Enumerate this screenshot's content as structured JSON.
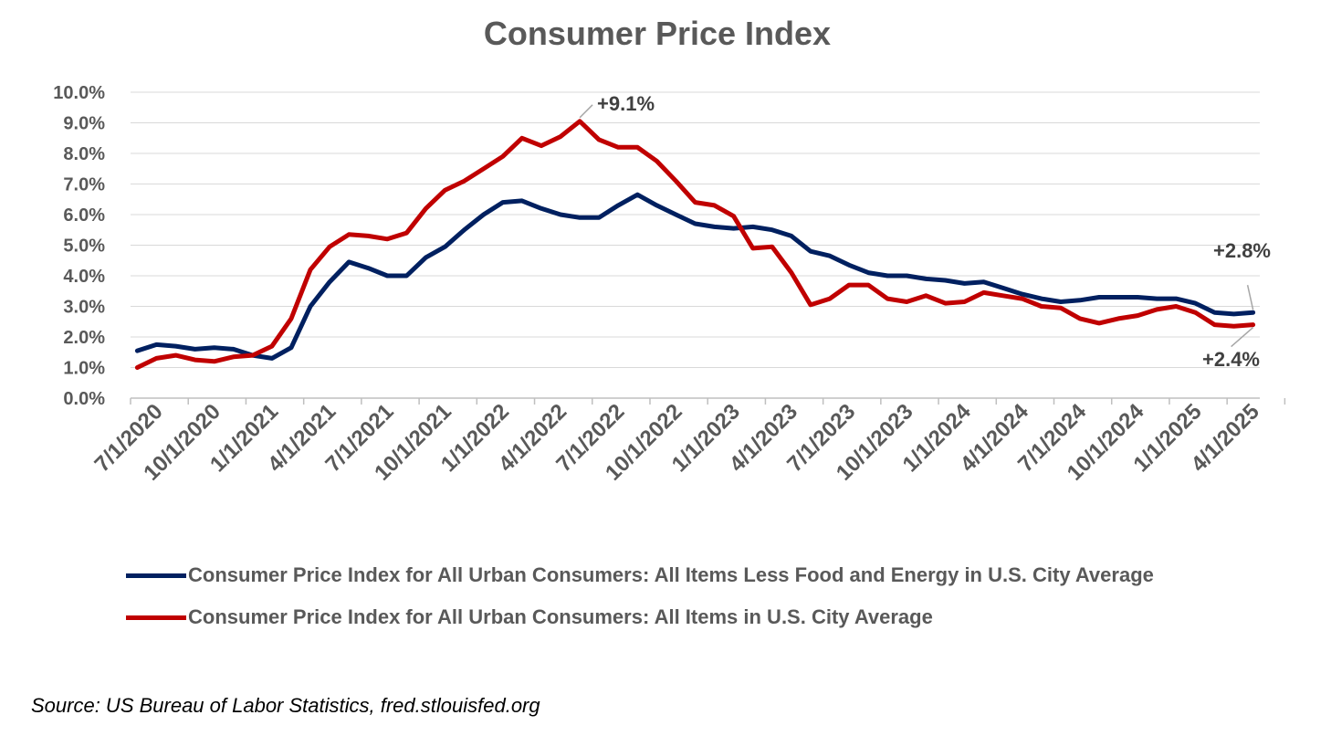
{
  "chart_data": {
    "type": "line",
    "title": "Consumer Price Index",
    "ylim": [
      0,
      10
    ],
    "y_ticks": [
      "0.0%",
      "1.0%",
      "2.0%",
      "3.0%",
      "4.0%",
      "5.0%",
      "6.0%",
      "7.0%",
      "8.0%",
      "9.0%",
      "10.0%"
    ],
    "x_tick_labels": [
      "7/1/2020",
      "10/1/2020",
      "1/1/2021",
      "4/1/2021",
      "7/1/2021",
      "10/1/2021",
      "1/1/2022",
      "4/1/2022",
      "7/1/2022",
      "10/1/2022",
      "1/1/2023",
      "4/1/2023",
      "7/1/2023",
      "10/1/2023",
      "1/1/2024",
      "4/1/2024",
      "7/1/2024",
      "10/1/2024",
      "1/1/2025",
      "4/1/2025"
    ],
    "start_month": "6/1/2020",
    "series": [
      {
        "name": "Consumer Price Index for All Urban Consumers: All Items Less Food and Energy in U.S. City Average",
        "color": "#002060",
        "values": [
          1.55,
          1.75,
          1.7,
          1.6,
          1.65,
          1.6,
          1.4,
          1.3,
          1.65,
          3.0,
          3.8,
          4.45,
          4.25,
          4.0,
          4.0,
          4.6,
          4.95,
          5.5,
          6.0,
          6.4,
          6.45,
          6.2,
          6.0,
          5.9,
          5.9,
          6.3,
          6.65,
          6.3,
          6.0,
          5.7,
          5.6,
          5.55,
          5.6,
          5.5,
          5.3,
          4.8,
          4.65,
          4.35,
          4.1,
          4.0,
          4.0,
          3.9,
          3.85,
          3.75,
          3.8,
          3.6,
          3.4,
          3.25,
          3.15,
          3.2,
          3.3,
          3.3,
          3.3,
          3.25,
          3.25,
          3.1,
          2.8,
          2.75,
          2.8
        ],
        "end_label": "+2.8%"
      },
      {
        "name": "Consumer Price Index for All Urban Consumers: All Items in U.S. City Average",
        "color": "#C00000",
        "values": [
          1.0,
          1.3,
          1.4,
          1.25,
          1.2,
          1.35,
          1.4,
          1.7,
          2.6,
          4.2,
          4.95,
          5.35,
          5.3,
          5.2,
          5.4,
          6.2,
          6.8,
          7.1,
          7.5,
          7.9,
          8.5,
          8.25,
          8.55,
          9.05,
          8.45,
          8.2,
          8.2,
          7.75,
          7.1,
          6.4,
          6.3,
          5.95,
          4.9,
          4.95,
          4.1,
          3.05,
          3.25,
          3.7,
          3.7,
          3.25,
          3.15,
          3.35,
          3.1,
          3.15,
          3.45,
          3.35,
          3.25,
          3.0,
          2.95,
          2.6,
          2.45,
          2.6,
          2.7,
          2.9,
          3.0,
          2.8,
          2.4,
          2.35,
          2.4
        ],
        "end_label": "+2.4%"
      }
    ],
    "annotations": [
      {
        "text": "+9.1%",
        "series": 1,
        "index": 23
      }
    ],
    "source": "Source: US Bureau of Labor Statistics, fred.stlouisfed.org"
  }
}
